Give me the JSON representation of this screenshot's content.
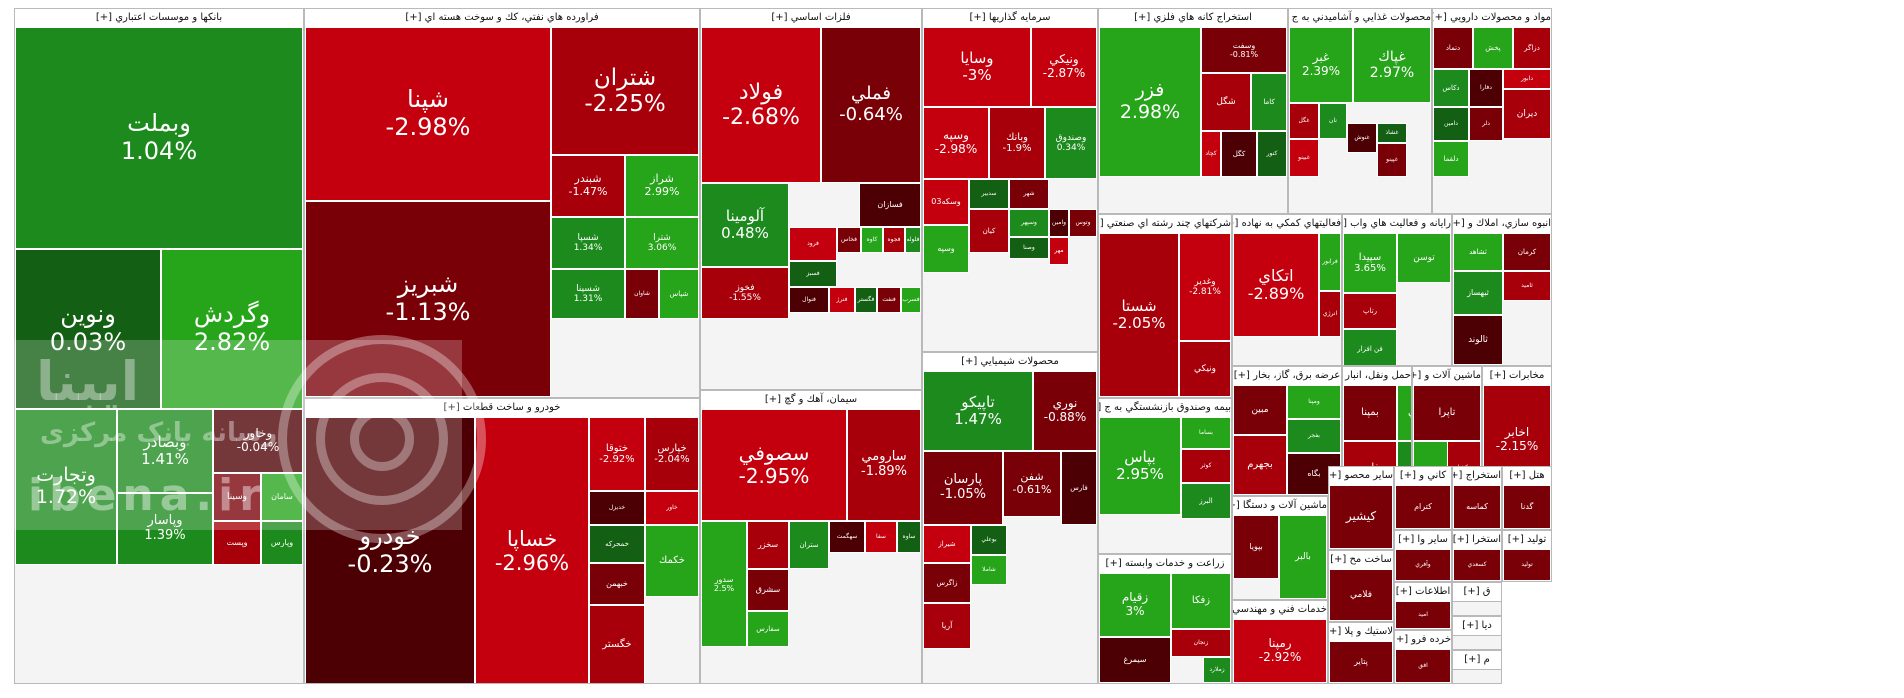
{
  "watermark": {
    "title": "ایبنا",
    "subtitle": "رسانه بانک مرکزی",
    "url": "ibena.ir"
  },
  "chart_data": {
    "type": "treemap",
    "title": "",
    "value_unit": "% change",
    "colors": {
      "strong_negative": "#c4000e",
      "moderate_negative": "#a8000a",
      "mild_negative": "#7a0008",
      "flat_negative": "#4d0004",
      "flat_positive": "#135f13",
      "mild_positive": "#1d8a1d",
      "strong_positive": "#26a41a"
    },
    "sectors": [
      {
        "name": "بانکها و موسسات اعتباري [+]",
        "tiles": [
          {
            "symbol": "وبملت",
            "change": 1.04
          },
          {
            "symbol": "ونوين",
            "change": 0.03
          },
          {
            "symbol": "وگردش",
            "change": 2.82
          },
          {
            "symbol": "وتجارت",
            "change": 1.72
          },
          {
            "symbol": "وبصادر",
            "change": 1.41
          },
          {
            "symbol": "وپاسار",
            "change": 1.39
          },
          {
            "symbol": "وخاور",
            "change": -0.04
          },
          {
            "symbol": "وسينا",
            "change": null
          },
          {
            "symbol": "سامان",
            "change": null
          },
          {
            "symbol": "وپست",
            "change": null
          },
          {
            "symbol": "وپارس",
            "change": null
          }
        ]
      },
      {
        "name": "فراورده هاي نفتي، كك و سوخت هسته اي [+]",
        "tiles": [
          {
            "symbol": "شپنا",
            "change": -2.98
          },
          {
            "symbol": "شتران",
            "change": -2.25
          },
          {
            "symbol": "شبندر",
            "change": -1.47
          },
          {
            "symbol": "شراز",
            "change": 2.99
          },
          {
            "symbol": "شبريز",
            "change": -1.13
          },
          {
            "symbol": "شسپا",
            "change": 1.34
          },
          {
            "symbol": "شترا",
            "change": 3.06
          },
          {
            "symbol": "شاوان",
            "change": null
          },
          {
            "symbol": "شپاس",
            "change": null
          },
          {
            "symbol": "شسينا",
            "change": 1.31
          }
        ]
      },
      {
        "name": "فلزات اساسي [+]",
        "tiles": [
          {
            "symbol": "فولاد",
            "change": -2.68
          },
          {
            "symbol": "فملي",
            "change": -0.64
          },
          {
            "symbol": "آلومينا",
            "change": 0.48
          },
          {
            "symbol": "فخوز",
            "change": -1.55
          },
          {
            "symbol": "فسازان",
            "change": null
          },
          {
            "symbol": "فرود",
            "change": null
          },
          {
            "symbol": "فسبز",
            "change": null
          },
          {
            "symbol": "فخاس",
            "change": null
          },
          {
            "symbol": "كاوه",
            "change": null
          },
          {
            "symbol": "فجوه",
            "change": null
          },
          {
            "symbol": "فلوله",
            "change": null
          },
          {
            "symbol": "فنوال",
            "change": null
          },
          {
            "symbol": "فنرژ",
            "change": null
          },
          {
            "symbol": "فگستر",
            "change": null
          },
          {
            "symbol": "فنفت",
            "change": null
          },
          {
            "symbol": "فسرب",
            "change": null
          }
        ]
      },
      {
        "name": "سرمايه گذاريها [+]",
        "tiles": [
          {
            "symbol": "وسايا",
            "change": -3
          },
          {
            "symbol": "ونيكي",
            "change": -2.87
          },
          {
            "symbol": "وسپه",
            "change": -2.98
          },
          {
            "symbol": "وبانك",
            "change": -1.9
          },
          {
            "symbol": "وصندوق",
            "change": 0.34
          },
          {
            "symbol": "وسكه03",
            "change": null
          },
          {
            "symbol": "سدبير",
            "change": null
          },
          {
            "symbol": "شهر",
            "change": null
          },
          {
            "symbol": "وسپه",
            "change": null
          },
          {
            "symbol": "كيان",
            "change": null
          },
          {
            "symbol": "وسپهر",
            "change": null
          },
          {
            "symbol": "وامين",
            "change": null
          },
          {
            "symbol": "مهر",
            "change": null
          },
          {
            "symbol": "وصنا",
            "change": null
          },
          {
            "symbol": "وتوس",
            "change": null
          }
        ]
      },
      {
        "name": "استخراج كانه هاي فلزي [+]",
        "tiles": [
          {
            "symbol": "فزر",
            "change": 2.98
          },
          {
            "symbol": "وسفت",
            "change": -0.81
          },
          {
            "symbol": "شگل",
            "change": null
          },
          {
            "symbol": "كاما",
            "change": null
          },
          {
            "symbol": "كگل",
            "change": null
          },
          {
            "symbol": "كچاد",
            "change": null
          },
          {
            "symbol": "كنور",
            "change": null
          }
        ]
      },
      {
        "name": "محصولات غذايي و آشاميدني به ج [+]",
        "tiles": [
          {
            "symbol": "غبر",
            "change": 2.39
          },
          {
            "symbol": "غپاك",
            "change": 2.97
          },
          {
            "symbol": "غگل",
            "change": null
          },
          {
            "symbol": "نان",
            "change": null
          },
          {
            "symbol": "غنوش",
            "change": null
          },
          {
            "symbol": "غبينو",
            "change": null
          },
          {
            "symbol": "غشاذ",
            "change": null
          },
          {
            "symbol": "غپينو",
            "change": null
          }
        ]
      },
      {
        "name": "مواد و محصولات دارويي [+]",
        "tiles": [
          {
            "symbol": "دتماد",
            "change": null
          },
          {
            "symbol": "پخش",
            "change": null
          },
          {
            "symbol": "دزاگر",
            "change": null
          },
          {
            "symbol": "دكاس",
            "change": null
          },
          {
            "symbol": "دفارا",
            "change": null
          },
          {
            "symbol": "دابور",
            "change": null
          },
          {
            "symbol": "دامين",
            "change": null
          },
          {
            "symbol": "دلر",
            "change": null
          },
          {
            "symbol": "دلقما",
            "change": null
          },
          {
            "symbol": "ديران",
            "change": null
          }
        ]
      },
      {
        "name": "خودرو و ساخت قطعات [+]",
        "tiles": [
          {
            "symbol": "خودرو",
            "change": -0.23
          },
          {
            "symbol": "خساپا",
            "change": -2.96
          },
          {
            "symbol": "ختوقا",
            "change": -2.92
          },
          {
            "symbol": "خپارس",
            "change": -2.04
          },
          {
            "symbol": "خديزل",
            "change": null
          },
          {
            "symbol": "خاور",
            "change": null
          },
          {
            "symbol": "خمحركه",
            "change": null
          },
          {
            "symbol": "خبهمن",
            "change": null
          },
          {
            "symbol": "خكمك",
            "change": null
          },
          {
            "symbol": "خگستر",
            "change": null
          }
        ]
      },
      {
        "name": "سيمان، آهك و گچ [+]",
        "tiles": [
          {
            "symbol": "سصوفي",
            "change": -2.95
          },
          {
            "symbol": "سارومي",
            "change": -1.89
          },
          {
            "symbol": "سخزر",
            "change": null
          },
          {
            "symbol": "ستران",
            "change": null
          },
          {
            "symbol": "سهگمت",
            "change": null
          },
          {
            "symbol": "سفا",
            "change": null
          },
          {
            "symbol": "ساوه",
            "change": null
          },
          {
            "symbol": "سشرق",
            "change": null
          },
          {
            "symbol": "سفارس",
            "change": null
          },
          {
            "symbol": "سدور",
            "change": 2.5
          }
        ]
      },
      {
        "name": "محصولات شيميايي [+]",
        "tiles": [
          {
            "symbol": "تاپيكو",
            "change": 1.47
          },
          {
            "symbol": "نوري",
            "change": -0.88
          },
          {
            "symbol": "پارسان",
            "change": -1.05
          },
          {
            "symbol": "شفن",
            "change": -0.61
          },
          {
            "symbol": "فارس",
            "change": null
          },
          {
            "symbol": "شيراز",
            "change": null
          },
          {
            "symbol": "بوعلي",
            "change": null
          },
          {
            "symbol": "زاگرس",
            "change": null
          },
          {
            "symbol": "شاملا",
            "change": null
          },
          {
            "symbol": "آريا",
            "change": null
          }
        ]
      },
      {
        "name": "شركتهاي چند رشته اي صنعتي [+]",
        "tiles": [
          {
            "symbol": "شستا",
            "change": -2.05
          },
          {
            "symbol": "وغدير",
            "change": -2.81
          },
          {
            "symbol": "ونيكي",
            "change": null
          }
        ]
      },
      {
        "name": "فعاليتهاي كمكي به نهاده [+]",
        "tiles": [
          {
            "symbol": "اتكاي",
            "change": -2.89
          },
          {
            "symbol": "فرابور",
            "change": null
          },
          {
            "symbol": "انرژي",
            "change": null
          }
        ]
      },
      {
        "name": "رايانه و فعاليت هاي واب [+]",
        "tiles": [
          {
            "symbol": "سپيدا",
            "change": 3.65
          },
          {
            "symbol": "توسن",
            "change": null
          },
          {
            "symbol": "رتاپ",
            "change": null
          },
          {
            "symbol": "فن افزار",
            "change": null
          }
        ]
      },
      {
        "name": "انبوه سازي، املاك و [+]",
        "tiles": [
          {
            "symbol": "كرمان",
            "change": null
          },
          {
            "symbol": "ثشاهد",
            "change": null
          },
          {
            "symbol": "ثامید",
            "change": null
          },
          {
            "symbol": "ثبهساز",
            "change": null
          },
          {
            "symbol": "ثالوند",
            "change": null
          }
        ]
      },
      {
        "name": "بيمه وصندوق بازنشستگي به ج [+]",
        "tiles": [
          {
            "symbol": "بپاس",
            "change": 2.95
          },
          {
            "symbol": "بساما",
            "change": null
          },
          {
            "symbol": "كوثر",
            "change": null
          },
          {
            "symbol": "البرز",
            "change": null
          }
        ]
      },
      {
        "name": "زراعت و خدمات وابسته [+]",
        "tiles": [
          {
            "symbol": "زقيام",
            "change": 3
          },
          {
            "symbol": "زفكا",
            "change": null
          },
          {
            "symbol": "زنجان",
            "change": null
          },
          {
            "symbol": "زملارد",
            "change": null
          },
          {
            "symbol": "سيمرغ",
            "change": null
          }
        ]
      },
      {
        "name": "عرضه برق، گاز، بخار [+]",
        "tiles": [
          {
            "symbol": "مبين",
            "change": null
          },
          {
            "symbol": "ومپنا",
            "change": null
          },
          {
            "symbol": "بجهرم",
            "change": null
          },
          {
            "symbol": "بفجر",
            "change": null
          },
          {
            "symbol": "بگاه",
            "change": null
          }
        ]
      },
      {
        "name": "حمل ونقل، انبار [+]",
        "tiles": [
          {
            "symbol": "بمپنا",
            "change": null
          },
          {
            "symbol": "حكشتي",
            "change": null
          },
          {
            "symbol": "حفارس",
            "change": null
          },
          {
            "symbol": "حپترو",
            "change": null
          }
        ]
      },
      {
        "name": "ماشين آلات و [+]",
        "tiles": [
          {
            "symbol": "تاپرا",
            "change": null
          },
          {
            "symbol": "تيمبي",
            "change": null
          },
          {
            "symbol": "تكشا",
            "change": null
          }
        ]
      },
      {
        "name": "مخابرات [+]",
        "tiles": [
          {
            "symbol": "اخابر",
            "change": -2.15
          },
          {
            "symbol": "همراه",
            "change": null
          }
        ]
      },
      {
        "name": "ماشين آلات و دستگا [+]",
        "tiles": [
          {
            "symbol": "بپويا",
            "change": null
          },
          {
            "symbol": "بالبر",
            "change": null
          },
          {
            "symbol": "بشهاب",
            "change": -1.8
          }
        ]
      },
      {
        "name": "ساير محصو [+]",
        "tiles": [
          {
            "symbol": "كيشير",
            "change": null
          },
          {
            "symbol": "كساوه",
            "change": null
          }
        ]
      },
      {
        "name": "كاني و [+]",
        "tiles": [
          {
            "symbol": "كترام",
            "change": null
          },
          {
            "symbol": "كپارس",
            "change": null
          }
        ]
      },
      {
        "name": "استخراج [+]",
        "tiles": [
          {
            "symbol": "كماسه",
            "change": null
          }
        ]
      },
      {
        "name": "هتل [+]",
        "tiles": [
          {
            "symbol": "گدنا",
            "change": null
          }
        ]
      },
      {
        "name": "خدمات فني و مهندسي [+]",
        "tiles": [
          {
            "symbol": "رمپنا",
            "change": -2.92
          }
        ]
      },
      {
        "name": "ساخت مح [+]",
        "tiles": [
          {
            "symbol": "فلامي",
            "change": null
          }
        ]
      },
      {
        "name": "ساير وا [+]",
        "tiles": [
          {
            "symbol": "وآفري",
            "change": null
          }
        ]
      },
      {
        "name": "استخرا [+]",
        "tiles": [
          {
            "symbol": "كسعدي",
            "change": null
          }
        ]
      },
      {
        "name": "توليد [+]",
        "tiles": [
          {
            "symbol": "تولید",
            "change": null
          }
        ]
      },
      {
        "name": "اطلاعات [+]",
        "tiles": [
          {
            "symbol": "اميد",
            "change": null
          },
          {
            "symbol": "افق",
            "change": null
          }
        ]
      },
      {
        "name": "لاستيك و پلا [+]",
        "tiles": [
          {
            "symbol": "پتاير",
            "change": null
          }
        ]
      },
      {
        "name": "خرده فرو [+]",
        "tiles": [
          {
            "symbol": "افق",
            "change": null
          }
        ]
      },
      {
        "name": "ق [+]",
        "tiles": []
      },
      {
        "name": "دیا [+]",
        "tiles": []
      },
      {
        "name": "م [+]",
        "tiles": []
      }
    ]
  }
}
